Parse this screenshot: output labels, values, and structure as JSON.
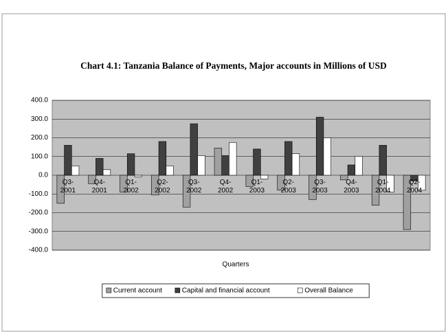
{
  "chart_data": {
    "type": "bar",
    "title": "Chart 4.1: Tanzania Balance of Payments, Major accounts in Millions of USD",
    "x_label": "Quarters",
    "categories": [
      "Q3-\n2001",
      "Q4-\n2001",
      "Q1-\n2002",
      "Q2-\n2002",
      "Q3-\n2002",
      "Q4-\n2002",
      "Q1-\n2003",
      "Q2-\n2003",
      "Q3-\n2003",
      "Q4-\n2003",
      "Q1-\n2004",
      "Q2-\n2004"
    ],
    "series": [
      {
        "name": "Current account",
        "color": "#a0a0a0",
        "values": [
          -150,
          -45,
          -90,
          -105,
          -170,
          145,
          -60,
          -80,
          -130,
          -25,
          -160,
          -290
        ]
      },
      {
        "name": "Capital and financial account",
        "color": "#404040",
        "values": [
          160,
          90,
          115,
          180,
          275,
          105,
          140,
          180,
          310,
          55,
          160,
          -30
        ]
      },
      {
        "name": "Overall Balance",
        "color": "#ffffff",
        "values": [
          50,
          30,
          -8,
          50,
          105,
          175,
          -20,
          115,
          200,
          100,
          -90,
          -80
        ]
      }
    ],
    "ylim": [
      -400,
      400
    ],
    "yticks": [
      {
        "value": -400,
        "label": "-400.0"
      },
      {
        "value": -300,
        "label": "-300.0"
      },
      {
        "value": -200,
        "label": "-200.0"
      },
      {
        "value": -100,
        "label": "-100.0"
      },
      {
        "value": 0,
        "label": "0.0"
      },
      {
        "value": 100,
        "label": "100.0"
      },
      {
        "value": 200,
        "label": "200.0"
      },
      {
        "value": 300,
        "label": "300.0"
      },
      {
        "value": 400,
        "label": "400.0"
      }
    ],
    "grid": true,
    "legend": "bottom"
  }
}
